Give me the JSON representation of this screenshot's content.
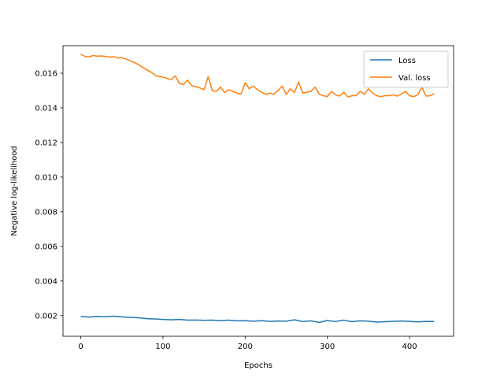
{
  "chart_data": {
    "type": "line",
    "title": "",
    "xlabel": "Epochs",
    "ylabel": "Negative log-likelihood",
    "xlim": [
      -21.6,
      453.6
    ],
    "ylim": [
      0.00081,
      0.01759
    ],
    "xticks": [
      0,
      100,
      200,
      300,
      400
    ],
    "xtick_labels": [
      "0",
      "100",
      "200",
      "300",
      "400"
    ],
    "yticks": [
      0.002,
      0.004,
      0.006,
      0.008,
      0.01,
      0.012,
      0.014,
      0.016
    ],
    "ytick_labels": [
      "0.002",
      "0.004",
      "0.006",
      "0.008",
      "0.010",
      "0.012",
      "0.014",
      "0.016"
    ],
    "grid": false,
    "legend_position": "top-right",
    "series": [
      {
        "name": "Loss",
        "color": "#1f77b4",
        "x": [
          0,
          10,
          20,
          30,
          40,
          50,
          60,
          70,
          80,
          90,
          100,
          110,
          120,
          130,
          140,
          150,
          160,
          170,
          180,
          190,
          200,
          210,
          220,
          230,
          240,
          250,
          260,
          270,
          280,
          290,
          300,
          310,
          320,
          330,
          340,
          350,
          360,
          370,
          380,
          390,
          400,
          410,
          420,
          430
        ],
        "y": [
          0.00195,
          0.00192,
          0.00196,
          0.00194,
          0.00197,
          0.00193,
          0.0019,
          0.00188,
          0.00183,
          0.00181,
          0.00178,
          0.00176,
          0.00178,
          0.00174,
          0.00175,
          0.00173,
          0.00174,
          0.00171,
          0.00174,
          0.0017,
          0.00171,
          0.00168,
          0.00171,
          0.00167,
          0.00169,
          0.00168,
          0.00176,
          0.00166,
          0.0017,
          0.00161,
          0.00172,
          0.00166,
          0.00174,
          0.00165,
          0.0017,
          0.00168,
          0.00163,
          0.00165,
          0.00167,
          0.00169,
          0.00167,
          0.00164,
          0.00167,
          0.00166
        ]
      },
      {
        "name": "Val. loss",
        "color": "#ff7f0e",
        "x": [
          0,
          5,
          10,
          15,
          20,
          25,
          30,
          35,
          40,
          45,
          50,
          55,
          60,
          65,
          70,
          75,
          80,
          85,
          90,
          95,
          100,
          105,
          110,
          115,
          120,
          125,
          130,
          135,
          140,
          145,
          150,
          155,
          160,
          165,
          170,
          175,
          180,
          185,
          190,
          195,
          200,
          205,
          210,
          215,
          220,
          225,
          230,
          235,
          240,
          245,
          250,
          255,
          260,
          265,
          270,
          275,
          280,
          285,
          290,
          295,
          300,
          305,
          310,
          315,
          320,
          325,
          330,
          335,
          340,
          345,
          350,
          355,
          360,
          365,
          370,
          375,
          380,
          385,
          390,
          395,
          400,
          405,
          410,
          415,
          420,
          425,
          430
        ],
        "y": [
          0.0171,
          0.01697,
          0.01695,
          0.01702,
          0.01698,
          0.017,
          0.01697,
          0.01693,
          0.01696,
          0.01688,
          0.0169,
          0.01682,
          0.01672,
          0.01662,
          0.0165,
          0.01635,
          0.0162,
          0.01608,
          0.0159,
          0.0158,
          0.01578,
          0.0157,
          0.01562,
          0.01585,
          0.0154,
          0.01535,
          0.0156,
          0.01528,
          0.01522,
          0.01515,
          0.01505,
          0.0158,
          0.015,
          0.01495,
          0.0152,
          0.01488,
          0.01505,
          0.01495,
          0.01485,
          0.0148,
          0.01545,
          0.0151,
          0.01525,
          0.01505,
          0.0149,
          0.01478,
          0.01485,
          0.01478,
          0.015,
          0.01525,
          0.01478,
          0.0151,
          0.01488,
          0.0155,
          0.01485,
          0.0149,
          0.01495,
          0.0152,
          0.0148,
          0.0147,
          0.01465,
          0.01495,
          0.01475,
          0.01468,
          0.0149,
          0.01462,
          0.0147,
          0.0147,
          0.01495,
          0.01478,
          0.0151,
          0.01485,
          0.0147,
          0.01465,
          0.0147,
          0.0147,
          0.01475,
          0.01468,
          0.0148,
          0.01495,
          0.0147,
          0.01465,
          0.01475,
          0.0152,
          0.01468,
          0.0147,
          0.01482
        ]
      }
    ]
  }
}
